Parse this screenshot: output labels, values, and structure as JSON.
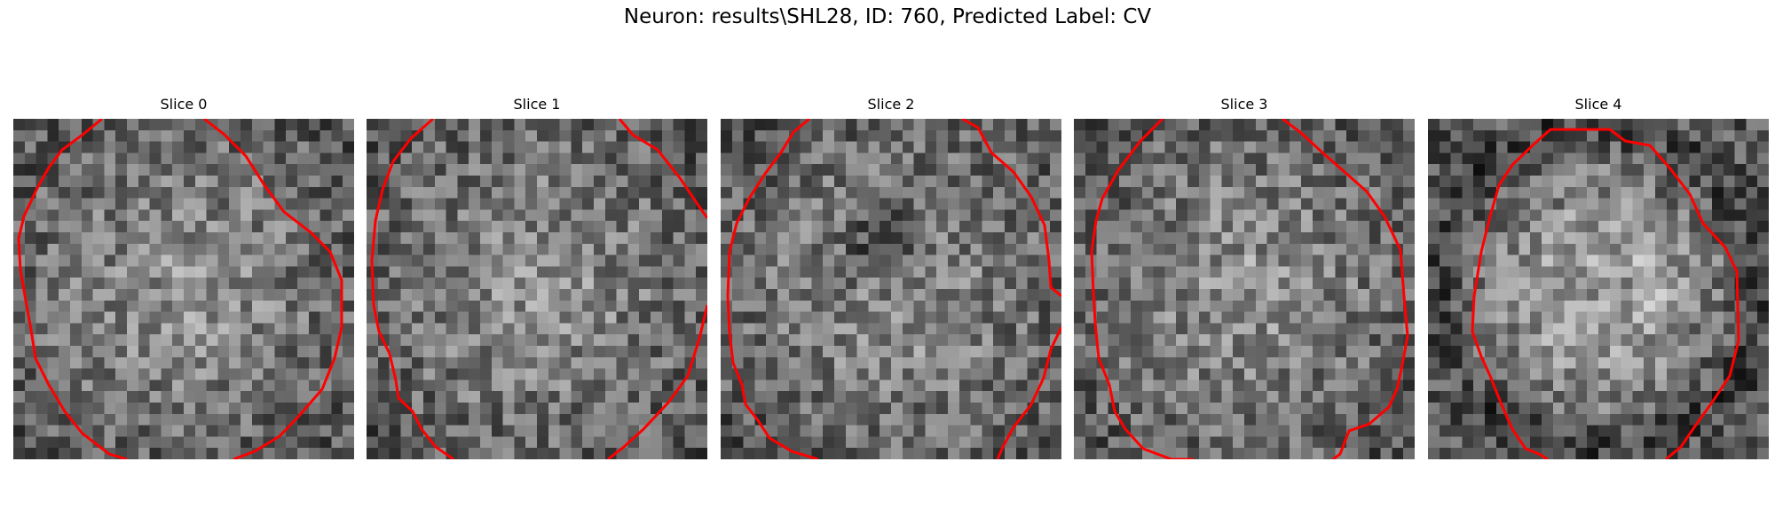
{
  "figure": {
    "title": "Neuron: results\\SHL28, ID: 760, Predicted Label: CV"
  },
  "panels": [
    {
      "title": "Slice 0",
      "contour_color": "#ff0000",
      "seed": 11
    },
    {
      "title": "Slice 1",
      "contour_color": "#ff0000",
      "seed": 23
    },
    {
      "title": "Slice 2",
      "contour_color": "#ff0000",
      "seed": 37
    },
    {
      "title": "Slice 3",
      "contour_color": "#ff0000",
      "seed": 53
    },
    {
      "title": "Slice 4",
      "contour_color": "#ff0000",
      "seed": 71
    }
  ]
}
